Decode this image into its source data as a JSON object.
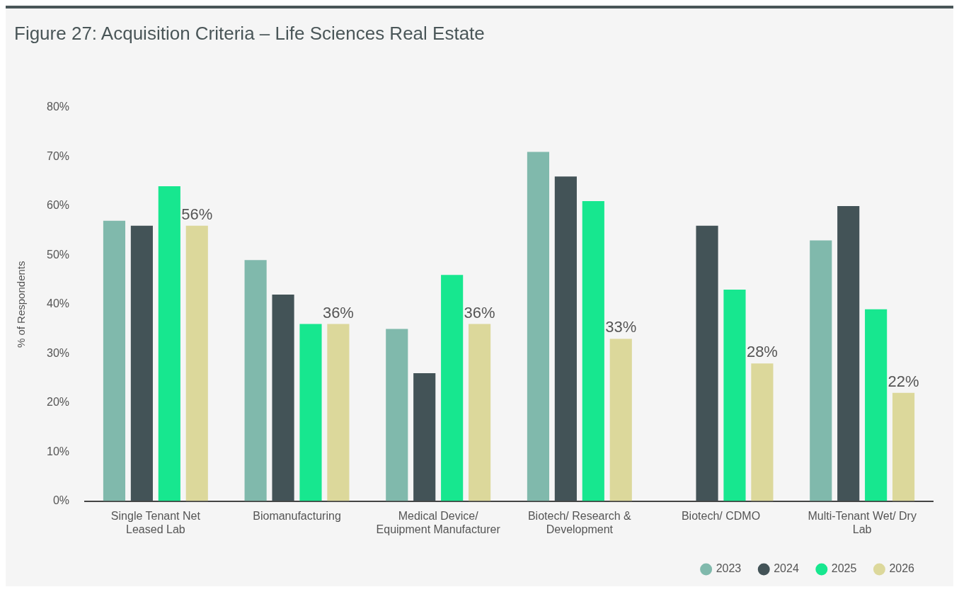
{
  "chart_data": {
    "type": "bar",
    "title": "Figure 27: Acquisition Criteria – Life Sciences Real Estate",
    "ylabel": "% of Respondents",
    "categories": [
      "Single Tenant Net Leased Lab",
      "Biomanufacturing",
      "Medical Device/ Equipment Manufacturer",
      "Biotech/ Research & Development",
      "Biotech/ CDMO",
      "Multi-Tenant Wet/ Dry Lab"
    ],
    "series": [
      {
        "name": "2023",
        "color": "#80b9ac",
        "values": [
          57,
          49,
          35,
          71,
          null,
          53
        ]
      },
      {
        "name": "2024",
        "color": "#435357",
        "values": [
          56,
          42,
          26,
          66,
          56,
          60
        ]
      },
      {
        "name": "2025",
        "color": "#17e78f",
        "values": [
          64,
          36,
          46,
          61,
          43,
          39
        ]
      },
      {
        "name": "2026",
        "color": "#dcd89b",
        "values": [
          56,
          36,
          36,
          33,
          28,
          22
        ],
        "value_labels": [
          "56%",
          "36%",
          "36%",
          "33%",
          "28%",
          "22%"
        ]
      }
    ],
    "ylim": [
      0,
      80
    ],
    "yticks": [
      {
        "value": 0,
        "label": "0%"
      },
      {
        "value": 10,
        "label": "10%"
      },
      {
        "value": 20,
        "label": "20%"
      },
      {
        "value": 30,
        "label": "30%"
      },
      {
        "value": 40,
        "label": "40%"
      },
      {
        "value": 50,
        "label": "50%"
      },
      {
        "value": 60,
        "label": "60%"
      },
      {
        "value": 70,
        "label": "70%"
      },
      {
        "value": 80,
        "label": "80%"
      }
    ],
    "legend": "bottom right"
  }
}
